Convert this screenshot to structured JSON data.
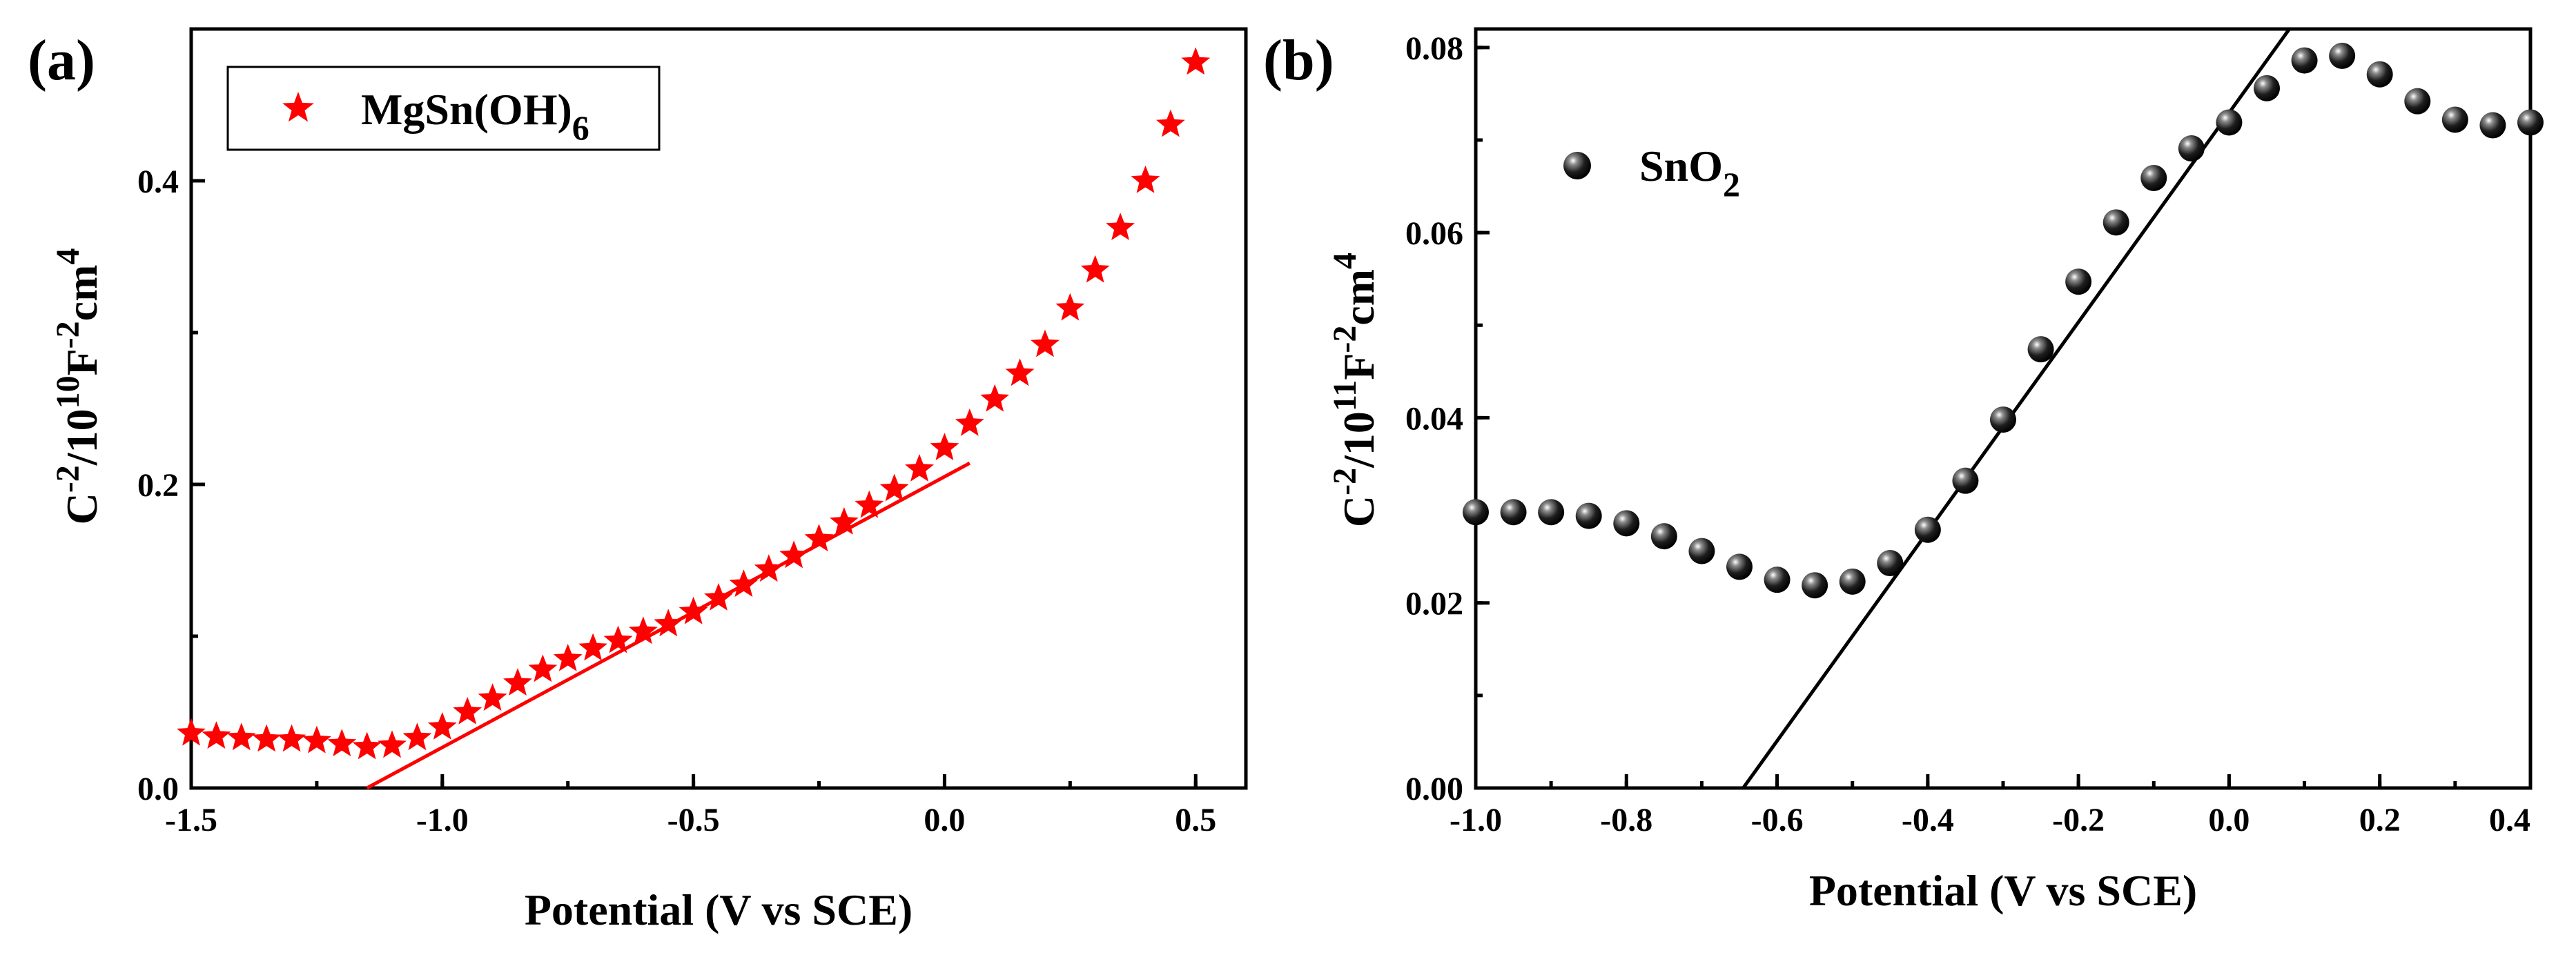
{
  "chart_data": [
    {
      "type": "scatter",
      "panel_label": "(a)",
      "xlabel": "Potential (V vs SCE)",
      "ylabel": {
        "base": "C",
        "sup1": "-2",
        "mid": "/10",
        "sup2": "10",
        "unit": "F",
        "sup3": "-2",
        "unit2": "cm",
        "sup4": "4"
      },
      "xlim": [
        -1.5,
        0.6
      ],
      "ylim": [
        0.0,
        0.5
      ],
      "xticks": [
        -1.5,
        -1.0,
        -0.5,
        0.0,
        0.5
      ],
      "xtick_labels": [
        "-1.5",
        "-1.0",
        "-0.5",
        "0.0",
        "0.5"
      ],
      "yticks": [
        0.0,
        0.2,
        0.4
      ],
      "ytick_labels": [
        "0.0",
        "0.2",
        "0.4"
      ],
      "marker": "star",
      "color": "#ff0000",
      "legend": {
        "label": "MgSn(OH)",
        "subscript": "6",
        "location": "top-left"
      },
      "series": [
        {
          "name": "MgSn(OH)6",
          "x": [
            -1.5,
            -1.45,
            -1.4,
            -1.35,
            -1.3,
            -1.25,
            -1.2,
            -1.15,
            -1.1,
            -1.05,
            -1.0,
            -0.95,
            -0.9,
            -0.85,
            -0.8,
            -0.75,
            -0.7,
            -0.65,
            -0.6,
            -0.55,
            -0.5,
            -0.45,
            -0.4,
            -0.35,
            -0.3,
            -0.25,
            -0.2,
            -0.15,
            -0.1,
            -0.05,
            0.0,
            0.05,
            0.1,
            0.15,
            0.2,
            0.25,
            0.3,
            0.35,
            0.4,
            0.45,
            0.5
          ],
          "y": [
            0.036,
            0.034,
            0.033,
            0.032,
            0.032,
            0.031,
            0.029,
            0.027,
            0.028,
            0.033,
            0.04,
            0.05,
            0.059,
            0.069,
            0.078,
            0.085,
            0.092,
            0.097,
            0.103,
            0.108,
            0.116,
            0.125,
            0.134,
            0.144,
            0.153,
            0.164,
            0.175,
            0.186,
            0.197,
            0.21,
            0.224,
            0.24,
            0.256,
            0.273,
            0.292,
            0.316,
            0.341,
            0.369,
            0.4,
            0.437,
            0.478
          ]
        }
      ],
      "fit_line": {
        "x": [
          -1.15,
          0.05
        ],
        "y": [
          0.0,
          0.214
        ]
      }
    },
    {
      "type": "scatter",
      "panel_label": "(b)",
      "xlabel": "Potential (V vs SCE)",
      "ylabel": {
        "base": "C",
        "sup1": "-2",
        "mid": "/10",
        "sup2": "11",
        "unit": "F",
        "sup3": "-2",
        "unit2": "cm",
        "sup4": "4"
      },
      "xlim": [
        -1.0,
        0.4
      ],
      "ylim": [
        0.0,
        0.082
      ],
      "xticks": [
        -1.0,
        -0.8,
        -0.6,
        -0.4,
        -0.2,
        0.0,
        0.2,
        0.4
      ],
      "xtick_labels": [
        "-1.0",
        "-0.8",
        "-0.6",
        "-0.4",
        "-0.2",
        "0.0",
        "0.2",
        "0.4"
      ],
      "yticks": [
        0.0,
        0.02,
        0.04,
        0.06,
        0.08
      ],
      "ytick_labels": [
        "0.00",
        "0.02",
        "0.04",
        "0.06",
        "0.08"
      ],
      "marker": "sphere",
      "color": "#000000",
      "legend": {
        "label": "SnO",
        "subscript": "2",
        "location": "top-left"
      },
      "series": [
        {
          "name": "SnO2",
          "x": [
            -1.0,
            -0.95,
            -0.9,
            -0.85,
            -0.8,
            -0.75,
            -0.7,
            -0.65,
            -0.6,
            -0.55,
            -0.5,
            -0.45,
            -0.4,
            -0.35,
            -0.3,
            -0.25,
            -0.2,
            -0.15,
            -0.1,
            -0.05,
            0.0,
            0.05,
            0.1,
            0.15,
            0.2,
            0.25,
            0.3,
            0.35,
            0.4
          ],
          "y": [
            0.0298,
            0.0298,
            0.0298,
            0.0294,
            0.0286,
            0.0272,
            0.0256,
            0.0239,
            0.0225,
            0.0219,
            0.0223,
            0.0243,
            0.0279,
            0.0332,
            0.0398,
            0.0474,
            0.0547,
            0.0611,
            0.0659,
            0.0691,
            0.0719,
            0.0756,
            0.0786,
            0.0791,
            0.0771,
            0.0742,
            0.0722,
            0.0716,
            0.0719
          ]
        }
      ],
      "fit_line": {
        "x": [
          -0.645,
          0.08
        ],
        "y": [
          0.0,
          0.082
        ]
      }
    }
  ]
}
